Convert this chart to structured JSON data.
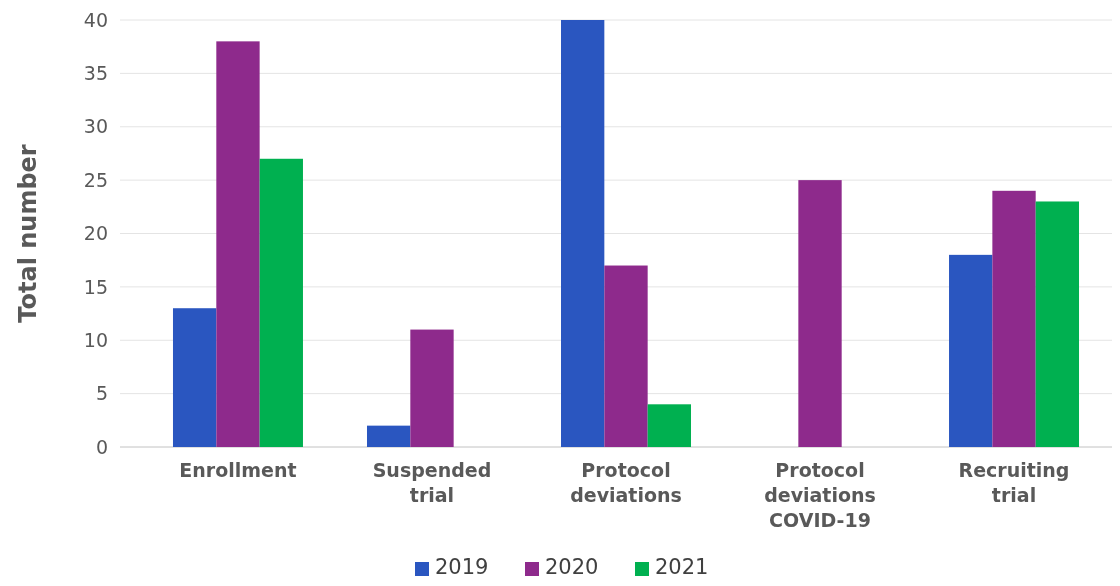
{
  "chart_data": {
    "type": "bar",
    "ylabel": "Total number",
    "categories": [
      "Enrollment",
      "Suspended trial",
      "Protocol deviations",
      "Protocol deviations COVID-19",
      "Recruiting trial"
    ],
    "series": [
      {
        "name": "2019",
        "color": "#2a56c0",
        "values": [
          13,
          2,
          40,
          0,
          18
        ]
      },
      {
        "name": "2020",
        "color": "#8e2a8c",
        "values": [
          38,
          11,
          17,
          25,
          24
        ]
      },
      {
        "name": "2021",
        "color": "#00b050",
        "values": [
          27,
          0,
          4,
          0,
          23
        ]
      }
    ],
    "ylim": [
      0,
      40
    ],
    "yticks": [
      0,
      5,
      10,
      15,
      20,
      25,
      30,
      35,
      40
    ],
    "grid": "y",
    "legend": "bottom"
  }
}
